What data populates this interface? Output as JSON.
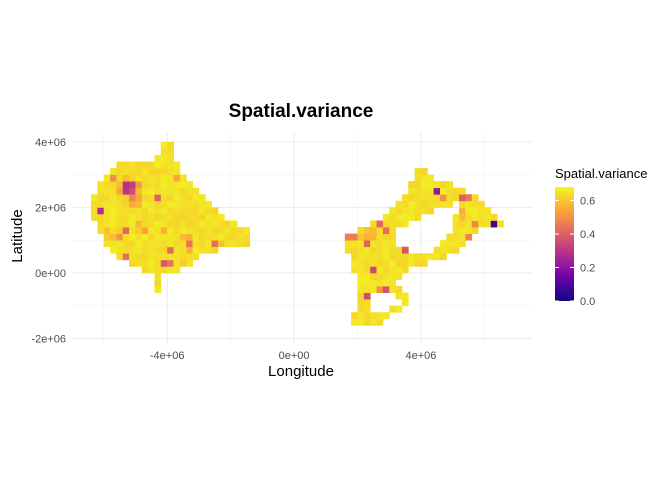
{
  "chart_data": {
    "type": "heatmap",
    "title": "Spatial.variance",
    "xlabel": "Longitude",
    "ylabel": "Latitude",
    "xlim": [
      -7000000,
      7500000
    ],
    "ylim": [
      -2200000,
      4300000
    ],
    "x_ticks": [
      {
        "value": -4000000,
        "label": "-4e+06"
      },
      {
        "value": 0,
        "label": "0e+00"
      },
      {
        "value": 4000000,
        "label": "4e+06"
      }
    ],
    "y_ticks": [
      {
        "value": -2000000,
        "label": "-2e+06"
      },
      {
        "value": 0,
        "label": "0e+00"
      },
      {
        "value": 2000000,
        "label": "2e+06"
      },
      {
        "value": 4000000,
        "label": "4e+06"
      }
    ],
    "grid": true,
    "legend": {
      "title": "Spatial.variance",
      "position": "right",
      "range": [
        0,
        0.68
      ],
      "ticks": [
        {
          "value": 0.0,
          "label": "0.0"
        },
        {
          "value": 0.2,
          "label": "0.2"
        },
        {
          "value": 0.4,
          "label": "0.4"
        },
        {
          "value": 0.6,
          "label": "0.6"
        }
      ],
      "colormap": [
        "#0d0887",
        "#6a00a8",
        "#b12a90",
        "#e16462",
        "#fca636",
        "#f0f921"
      ]
    },
    "cell_size": 200000,
    "regions": [
      {
        "name": "west",
        "base_value": 0.66,
        "polygon": [
          [
            -6200000,
            2700000
          ],
          [
            -5600000,
            3400000
          ],
          [
            -4900000,
            3500000
          ],
          [
            -4400000,
            3500000
          ],
          [
            -4000000,
            4200000
          ],
          [
            -3600000,
            3200000
          ],
          [
            -3200000,
            2600000
          ],
          [
            -2600000,
            2200000
          ],
          [
            -2000000,
            1600000
          ],
          [
            -1300000,
            1300000
          ],
          [
            -1300000,
            800000
          ],
          [
            -2300000,
            700000
          ],
          [
            -2700000,
            600000
          ],
          [
            -3000000,
            500000
          ],
          [
            -3500000,
            100000
          ],
          [
            -4100000,
            0
          ],
          [
            -4300000,
            -600000
          ],
          [
            -4500000,
            0
          ],
          [
            -5600000,
            500000
          ],
          [
            -6200000,
            1300000
          ],
          [
            -6400000,
            1900000
          ]
        ],
        "patches": [
          {
            "x": -5200000,
            "y": 2600000,
            "r": 350000,
            "value": 0.08
          },
          {
            "x": -5000000,
            "y": 2200000,
            "r": 220000,
            "value": 0.45
          },
          {
            "x": -4300000,
            "y": 2300000,
            "r": 180000,
            "value": 0.35
          },
          {
            "x": -6100000,
            "y": 1900000,
            "r": 150000,
            "value": 0.3
          },
          {
            "x": -5700000,
            "y": 1200000,
            "r": 250000,
            "value": 0.55
          },
          {
            "x": -4800000,
            "y": 1400000,
            "r": 300000,
            "value": 0.55
          },
          {
            "x": -4000000,
            "y": 300000,
            "r": 220000,
            "value": 0.25
          },
          {
            "x": -3400000,
            "y": 1100000,
            "r": 250000,
            "value": 0.58
          },
          {
            "x": -4300000,
            "y": 4000000,
            "r": 120000,
            "value": 0.15
          },
          {
            "x": -3600000,
            "y": 400000,
            "r": 150000,
            "value": 0.4
          }
        ]
      },
      {
        "name": "east",
        "base_value": 0.66,
        "polygon": [
          [
            1600000,
            1100000
          ],
          [
            2600000,
            1600000
          ],
          [
            3300000,
            2100000
          ],
          [
            4000000,
            3400000
          ],
          [
            4600000,
            2800000
          ],
          [
            5300000,
            2600000
          ],
          [
            6000000,
            2100000
          ],
          [
            6600000,
            1400000
          ],
          [
            5800000,
            1300000
          ],
          [
            5300000,
            800000
          ],
          [
            4900000,
            500000
          ],
          [
            3800000,
            200000
          ],
          [
            3200000,
            -300000
          ],
          [
            3800000,
            -800000
          ],
          [
            2600000,
            -1600000
          ],
          [
            1800000,
            -1700000
          ],
          [
            2100000,
            -400000
          ],
          [
            1800000,
            200000
          ]
        ],
        "holes": [
          [
            [
              3300000,
              1300000
            ],
            [
              4200000,
              1800000
            ],
            [
              5200000,
              2200000
            ],
            [
              5000000,
              1200000
            ],
            [
              4400000,
              700000
            ],
            [
              3600000,
              700000
            ],
            [
              3100000,
              800000
            ]
          ],
          [
            [
              2400000,
              -500000
            ],
            [
              2900000,
              -500000
            ],
            [
              3400000,
              -900000
            ],
            [
              2700000,
              -1200000
            ],
            [
              2300000,
              -1000000
            ]
          ]
        ],
        "patches": [
          {
            "x": 1800000,
            "y": 1100000,
            "r": 180000,
            "value": 0.25
          },
          {
            "x": 2300000,
            "y": 1200000,
            "r": 250000,
            "value": 0.55
          },
          {
            "x": 2700000,
            "y": 1500000,
            "r": 200000,
            "value": 0.45
          },
          {
            "x": 5400000,
            "y": 2300000,
            "r": 180000,
            "value": 0.12
          },
          {
            "x": 6300000,
            "y": 1500000,
            "r": 160000,
            "value": 0.1
          },
          {
            "x": 4500000,
            "y": 2500000,
            "r": 150000,
            "value": 0.2
          },
          {
            "x": 2500000,
            "y": 100000,
            "r": 180000,
            "value": 0.3
          },
          {
            "x": 5500000,
            "y": 1000000,
            "r": 160000,
            "value": 0.15
          },
          {
            "x": 3800000,
            "y": 800000,
            "r": 160000,
            "value": 0.35
          },
          {
            "x": 2700000,
            "y": -800000,
            "r": 150000,
            "value": 0.2
          }
        ]
      }
    ]
  }
}
